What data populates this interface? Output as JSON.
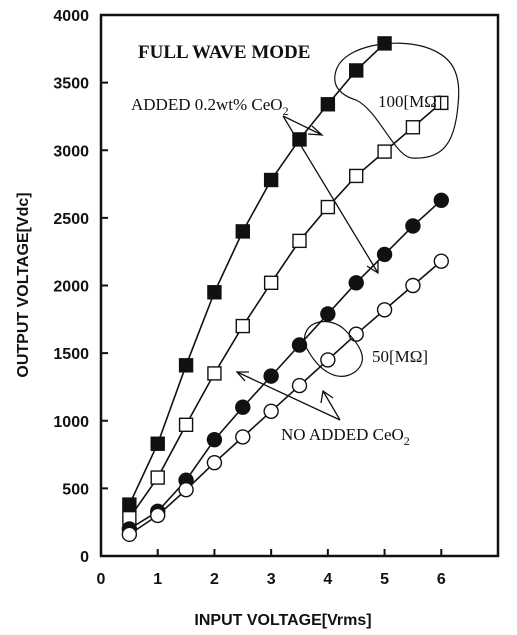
{
  "chart_data": {
    "type": "line",
    "title": "FULL WAVE MODE",
    "xlabel": "INPUT VOLTAGE[Vrms]",
    "ylabel": "OUTPUT VOLTAGE[Vdc]",
    "xlim": [
      0,
      7
    ],
    "ylim": [
      0,
      4000
    ],
    "xticks": [
      "0",
      "1",
      "2",
      "3",
      "4",
      "5",
      "6"
    ],
    "yticks": [
      "0",
      "500",
      "1000",
      "1500",
      "2000",
      "2500",
      "3000",
      "3500",
      "4000"
    ],
    "grid": false,
    "series": [
      {
        "marker": "filled-square",
        "color": "#111111",
        "x": [
          0.5,
          1.0,
          1.5,
          2.0,
          2.5,
          3.0,
          3.5,
          4.0,
          4.5,
          5.0
        ],
        "y": [
          380,
          830,
          1410,
          1950,
          2400,
          2780,
          3080,
          3340,
          3590,
          3790
        ]
      },
      {
        "marker": "open-square",
        "color": "#111111",
        "x": [
          0.5,
          1.0,
          1.5,
          2.0,
          2.5,
          3.0,
          3.5,
          4.0,
          4.5,
          5.0,
          5.5,
          6.0
        ],
        "y": [
          280,
          580,
          970,
          1350,
          1700,
          2020,
          2330,
          2580,
          2810,
          2990,
          3170,
          3350
        ]
      },
      {
        "marker": "filled-circle",
        "color": "#111111",
        "x": [
          0.5,
          1.0,
          1.5,
          2.0,
          2.5,
          3.0,
          3.5,
          4.0,
          4.5,
          5.0,
          5.5,
          6.0
        ],
        "y": [
          200,
          330,
          560,
          860,
          1100,
          1330,
          1560,
          1790,
          2020,
          2230,
          2440,
          2630
        ]
      },
      {
        "marker": "open-circle",
        "color": "#111111",
        "x": [
          0.5,
          1.0,
          1.5,
          2.0,
          2.5,
          3.0,
          3.5,
          4.0,
          4.5,
          5.0,
          5.5,
          6.0
        ],
        "y": [
          160,
          300,
          490,
          690,
          880,
          1070,
          1260,
          1450,
          1640,
          1820,
          2000,
          2180
        ]
      }
    ],
    "annotations": {
      "added": "ADDED 0.2wt% CeO",
      "added_sub": "2",
      "not_added": "NO ADDED CeO",
      "not_added_sub": "2",
      "r100": "100[MΩ]",
      "r50": "50[MΩ]"
    }
  }
}
